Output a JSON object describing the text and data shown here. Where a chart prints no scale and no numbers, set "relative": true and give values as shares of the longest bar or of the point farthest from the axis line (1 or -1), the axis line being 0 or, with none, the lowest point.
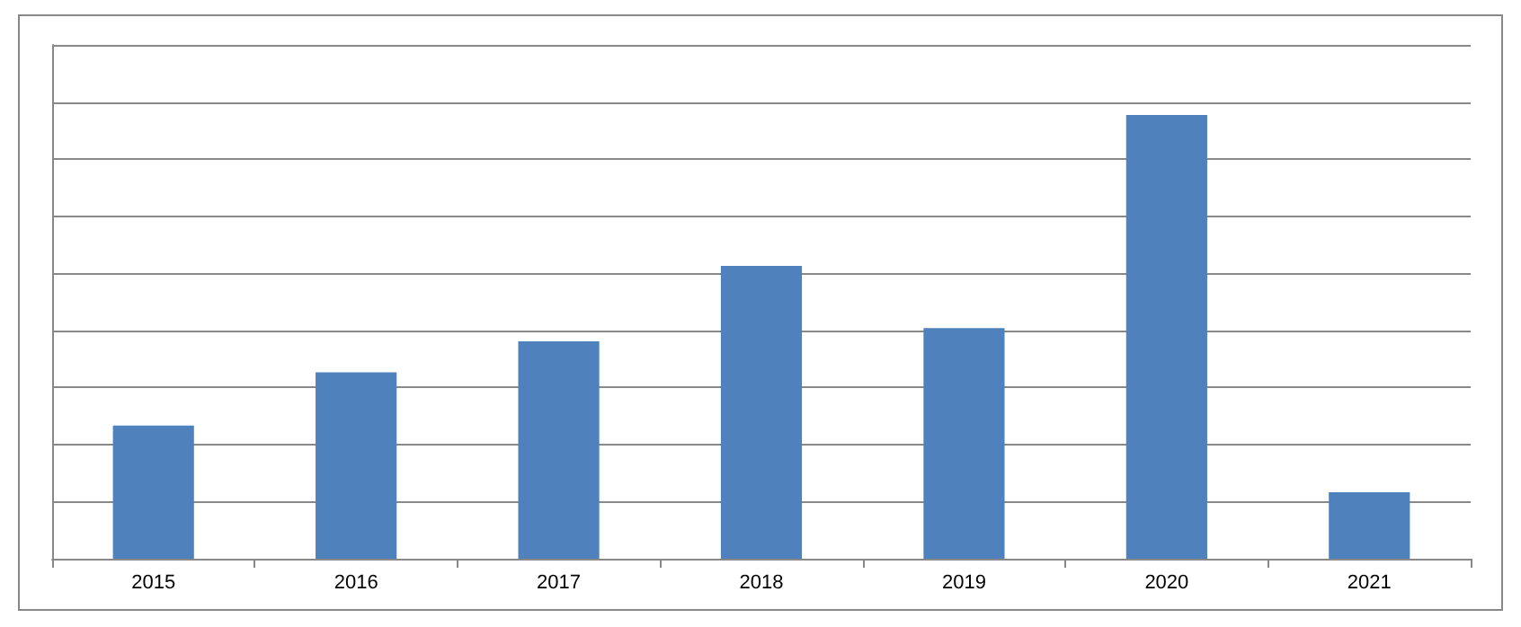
{
  "chart_data": {
    "type": "bar",
    "relative": true,
    "categories": [
      "2015",
      "2016",
      "2017",
      "2018",
      "2019",
      "2020",
      "2021"
    ],
    "series": [
      {
        "color": "#4f81bd",
        "values": [
          0.3,
          0.42,
          0.49,
          0.66,
          0.52,
          1,
          0.15
        ]
      }
    ],
    "grid": "y"
  }
}
